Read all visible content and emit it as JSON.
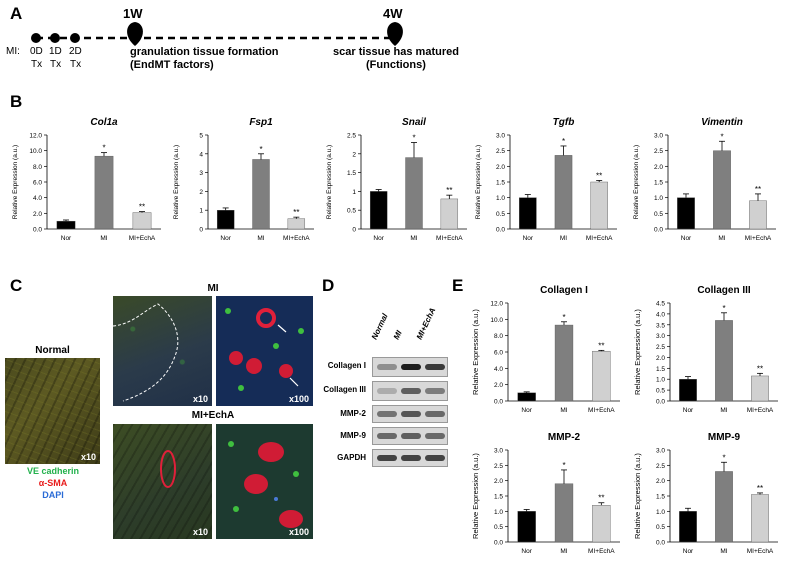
{
  "panels": {
    "A": "A",
    "B": "B",
    "C": "C",
    "D": "D",
    "E": "E"
  },
  "timeline": {
    "mi_label": "MI:",
    "days": [
      {
        "day": "0D",
        "tx": "Tx"
      },
      {
        "day": "1D",
        "tx": "Tx"
      },
      {
        "day": "2D",
        "tx": "Tx"
      }
    ],
    "week1": {
      "label": "1W",
      "line1": "granulation tissue formation",
      "line2": "(EndMT factors)"
    },
    "week4": {
      "label": "4W",
      "line1": "scar tissue has matured",
      "line2": "(Functions)"
    }
  },
  "panel_c": {
    "normal_title": "Normal",
    "mi_title": "MI",
    "mi_echa_title": "MI+EchA",
    "mag_x10": "x10",
    "mag_x100": "x100",
    "legend": [
      {
        "text": "VE cadherin",
        "color": "#22b14c"
      },
      {
        "text": "α-SMA",
        "color": "#e81c1c"
      },
      {
        "text": "DAPI",
        "color": "#2a6bd6"
      }
    ]
  },
  "panel_d": {
    "lanes": [
      "Normal",
      "MI",
      "MI+EchA"
    ],
    "bands": [
      "Collagen I",
      "Collagen III",
      "MMP-2",
      "MMP-9",
      "GAPDH"
    ]
  },
  "chart_data": [
    {
      "type": "bar",
      "title": "Col1a",
      "title_italic": true,
      "categories": [
        "Nor",
        "MI",
        "MI+EchA"
      ],
      "values": [
        1.0,
        9.3,
        2.1
      ],
      "errors": [
        0.15,
        0.45,
        0.12
      ],
      "sig": [
        "",
        "*",
        "**"
      ],
      "ylabel": "Relative Expression (a.u.)",
      "ylim": [
        0,
        12
      ],
      "yticks": [
        "0.0",
        "2.0",
        "4.0",
        "6.0",
        "8.0",
        "10.0",
        "12.0"
      ],
      "colors": [
        "#000000",
        "#7f7f7f",
        "#d0d0d0"
      ]
    },
    {
      "type": "bar",
      "title": "Fsp1",
      "title_italic": true,
      "categories": [
        "Nor",
        "MI",
        "MI+EchA"
      ],
      "values": [
        1.0,
        3.7,
        0.55
      ],
      "errors": [
        0.12,
        0.3,
        0.08
      ],
      "sig": [
        "",
        "*",
        "**"
      ],
      "ylabel": "Relative Expression (a.u.)",
      "ylim": [
        0,
        5
      ],
      "yticks": [
        "0",
        "1",
        "2",
        "3",
        "4",
        "5"
      ],
      "colors": [
        "#000000",
        "#7f7f7f",
        "#d0d0d0"
      ]
    },
    {
      "type": "bar",
      "title": "Snail",
      "title_italic": true,
      "categories": [
        "Nor",
        "MI",
        "MI+EchA"
      ],
      "values": [
        1.0,
        1.9,
        0.8
      ],
      "errors": [
        0.05,
        0.4,
        0.1
      ],
      "sig": [
        "",
        "*",
        "**"
      ],
      "ylabel": "Relative Expression (a.u.)",
      "ylim": [
        0,
        2.5
      ],
      "yticks": [
        "0",
        "0.5",
        "1",
        "1.5",
        "2",
        "2.5"
      ],
      "colors": [
        "#000000",
        "#7f7f7f",
        "#d0d0d0"
      ]
    },
    {
      "type": "bar",
      "title": "Tgfb",
      "title_italic": true,
      "categories": [
        "Nor",
        "MI",
        "MI+EchA"
      ],
      "values": [
        1.0,
        2.35,
        1.5
      ],
      "errors": [
        0.1,
        0.3,
        0.05
      ],
      "sig": [
        "",
        "*",
        "**"
      ],
      "ylabel": "Relative Expression (a.u.)",
      "ylim": [
        0,
        3
      ],
      "yticks": [
        "0.0",
        "0.5",
        "1.0",
        "1.5",
        "2.0",
        "2.5",
        "3.0"
      ],
      "colors": [
        "#000000",
        "#7f7f7f",
        "#d0d0d0"
      ]
    },
    {
      "type": "bar",
      "title": "Vimentin",
      "title_italic": true,
      "categories": [
        "Nor",
        "MI",
        "MI+EchA"
      ],
      "values": [
        1.0,
        2.5,
        0.9
      ],
      "errors": [
        0.12,
        0.3,
        0.22
      ],
      "sig": [
        "",
        "*",
        "**"
      ],
      "ylabel": "Relative Expression (a.u.)",
      "ylim": [
        0,
        3
      ],
      "yticks": [
        "0.0",
        "0.5",
        "1.0",
        "1.5",
        "2.0",
        "2.5",
        "3.0"
      ],
      "colors": [
        "#000000",
        "#7f7f7f",
        "#d0d0d0"
      ]
    },
    {
      "type": "bar",
      "title": "Collagen I",
      "title_italic": false,
      "categories": [
        "Nor",
        "MI",
        "MI+EchA"
      ],
      "values": [
        1.0,
        9.3,
        6.1
      ],
      "errors": [
        0.12,
        0.4,
        0.1
      ],
      "sig": [
        "",
        "*",
        "**"
      ],
      "ylabel": "Relative Expression (a.u.)",
      "ylim": [
        0,
        12
      ],
      "yticks": [
        "0.0",
        "2.0",
        "4.0",
        "6.0",
        "8.0",
        "10.0",
        "12.0"
      ],
      "colors": [
        "#000000",
        "#7f7f7f",
        "#d0d0d0"
      ]
    },
    {
      "type": "bar",
      "title": "Collagen III",
      "title_italic": false,
      "categories": [
        "Nor",
        "MI",
        "MI+EchA"
      ],
      "values": [
        1.0,
        3.7,
        1.15
      ],
      "errors": [
        0.12,
        0.35,
        0.12
      ],
      "sig": [
        "",
        "*",
        "**"
      ],
      "ylabel": "Relative Expression (a.u.)",
      "ylim": [
        0,
        4.5
      ],
      "yticks": [
        "0.0",
        "0.5",
        "1.0",
        "1.5",
        "2.0",
        "2.5",
        "3.0",
        "3.5",
        "4.0",
        "4.5"
      ],
      "colors": [
        "#000000",
        "#7f7f7f",
        "#d0d0d0"
      ]
    },
    {
      "type": "bar",
      "title": "MMP-2",
      "title_italic": false,
      "categories": [
        "Nor",
        "MI",
        "MI+EchA"
      ],
      "values": [
        1.0,
        1.9,
        1.2
      ],
      "errors": [
        0.06,
        0.45,
        0.08
      ],
      "sig": [
        "",
        "*",
        "**"
      ],
      "ylabel": "Relative Expression (a.u.)",
      "ylim": [
        0,
        3
      ],
      "yticks": [
        "0.0",
        "0.5",
        "1.0",
        "1.5",
        "2.0",
        "2.5",
        "3.0"
      ],
      "colors": [
        "#000000",
        "#7f7f7f",
        "#d0d0d0"
      ]
    },
    {
      "type": "bar",
      "title": "MMP-9",
      "title_italic": false,
      "categories": [
        "Nor",
        "MI",
        "MI+EchA"
      ],
      "values": [
        1.0,
        2.3,
        1.55
      ],
      "errors": [
        0.1,
        0.3,
        0.05
      ],
      "sig": [
        "",
        "*",
        "**"
      ],
      "ylabel": "Relative Expression (a.u.)",
      "ylim": [
        0,
        3
      ],
      "yticks": [
        "0.0",
        "0.5",
        "1.0",
        "1.5",
        "2.0",
        "2.5",
        "3.0"
      ],
      "colors": [
        "#000000",
        "#7f7f7f",
        "#d0d0d0"
      ]
    }
  ]
}
